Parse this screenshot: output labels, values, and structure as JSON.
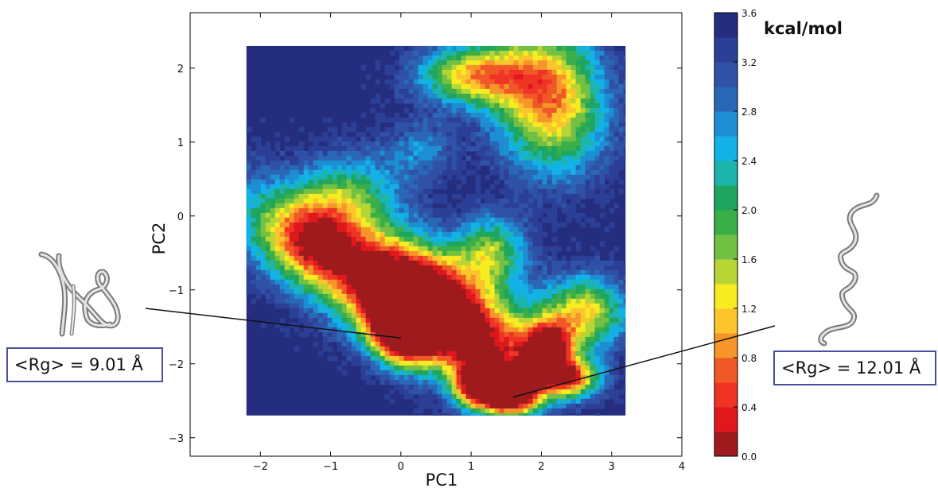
{
  "chart_data": {
    "type": "heatmap",
    "title": "",
    "xlabel": "PC1",
    "ylabel": "PC2",
    "xlim": [
      -3,
      4
    ],
    "ylim": [
      -3.25,
      2.75
    ],
    "x_ticks": [
      -2,
      -1,
      0,
      1,
      2,
      3,
      4
    ],
    "y_ticks": [
      -3,
      -2,
      -1,
      0,
      1,
      2
    ],
    "x_tick_labels": [
      "−2",
      "−1",
      "0",
      "1",
      "2",
      "3",
      "4"
    ],
    "y_tick_labels": [
      "−3",
      "−2",
      "−1",
      "0",
      "1",
      "2"
    ],
    "data_extent": {
      "x": [
        -2.2,
        3.2
      ],
      "y": [
        -2.7,
        2.3
      ]
    },
    "background_value": 3.6,
    "colorbar": {
      "unit_label": "kcal/mol",
      "range": [
        0.0,
        3.6
      ],
      "ticks": [
        0.0,
        0.4,
        0.8,
        1.2,
        1.6,
        2.0,
        2.4,
        2.8,
        3.2,
        3.6
      ],
      "tick_labels": [
        "0.0",
        "0.4",
        "0.8",
        "1.2",
        "1.6",
        "2.0",
        "2.4",
        "2.8",
        "3.2",
        "3.6"
      ],
      "levels": [
        {
          "min": 0.0,
          "max": 0.2,
          "color": "#9e1a1c"
        },
        {
          "min": 0.2,
          "max": 0.4,
          "color": "#e0181e"
        },
        {
          "min": 0.4,
          "max": 0.6,
          "color": "#ef3426"
        },
        {
          "min": 0.6,
          "max": 0.8,
          "color": "#f05828"
        },
        {
          "min": 0.8,
          "max": 1.0,
          "color": "#f5952a"
        },
        {
          "min": 1.0,
          "max": 1.2,
          "color": "#fdc52c"
        },
        {
          "min": 1.2,
          "max": 1.4,
          "color": "#f6ec21"
        },
        {
          "min": 1.4,
          "max": 1.6,
          "color": "#b7d535"
        },
        {
          "min": 1.6,
          "max": 1.8,
          "color": "#72c044"
        },
        {
          "min": 1.8,
          "max": 2.0,
          "color": "#3aae49"
        },
        {
          "min": 2.0,
          "max": 2.2,
          "color": "#1ea560"
        },
        {
          "min": 2.2,
          "max": 2.4,
          "color": "#1cb4ad"
        },
        {
          "min": 2.4,
          "max": 2.6,
          "color": "#13b2e6"
        },
        {
          "min": 2.6,
          "max": 2.8,
          "color": "#1d8ed3"
        },
        {
          "min": 2.8,
          "max": 3.0,
          "color": "#2a68b7"
        },
        {
          "min": 3.0,
          "max": 3.2,
          "color": "#2f51a6"
        },
        {
          "min": 3.2,
          "max": 3.4,
          "color": "#2c3f96"
        },
        {
          "min": 3.4,
          "max": 3.6,
          "color": "#252d7e"
        }
      ]
    },
    "basins": [
      {
        "x": 2.1,
        "y": 1.6,
        "depth": 0.85,
        "sx": 0.55,
        "sy": 0.7,
        "rot": 0.25
      },
      {
        "x": 1.0,
        "y": 1.9,
        "depth": 0.7,
        "sx": 0.55,
        "sy": 0.28,
        "rot": 0.0
      },
      {
        "x": -0.7,
        "y": -0.7,
        "depth": 0.9,
        "sx": 1.2,
        "sy": 0.45,
        "rot": -0.52
      },
      {
        "x": 0.3,
        "y": -1.0,
        "depth": 0.85,
        "sx": 0.6,
        "sy": 0.45,
        "rot": -0.4
      },
      {
        "x": 0.0,
        "y": -1.6,
        "depth": 1.0,
        "sx": 0.35,
        "sy": 0.28,
        "rot": -0.5
      },
      {
        "x": 1.2,
        "y": -1.7,
        "depth": 0.8,
        "sx": 0.7,
        "sy": 0.4,
        "rot": -0.35
      },
      {
        "x": 1.6,
        "y": -2.4,
        "depth": 1.2,
        "sx": 0.28,
        "sy": 0.22,
        "rot": 0.0
      },
      {
        "x": 1.1,
        "y": -2.3,
        "depth": 1.05,
        "sx": 0.25,
        "sy": 0.22,
        "rot": 0.0
      },
      {
        "x": 2.4,
        "y": -2.2,
        "depth": 0.85,
        "sx": 0.3,
        "sy": 0.18,
        "rot": 0.0
      },
      {
        "x": 2.1,
        "y": -1.8,
        "depth": 0.9,
        "sx": 0.25,
        "sy": 0.25,
        "rot": 0.0
      },
      {
        "x": 2.6,
        "y": -1.3,
        "depth": 0.7,
        "sx": 0.45,
        "sy": 0.35,
        "rot": 0.0
      },
      {
        "x": 1.3,
        "y": -0.5,
        "depth": 0.55,
        "sx": 0.35,
        "sy": 0.35,
        "rot": 0.0
      },
      {
        "x": -0.7,
        "y": 0.3,
        "depth": 0.45,
        "sx": 0.5,
        "sy": 0.4,
        "rot": 0.0
      },
      {
        "x": 0.3,
        "y": 0.9,
        "depth": 0.25,
        "sx": 0.35,
        "sy": 0.3,
        "rot": 0.0
      },
      {
        "x": -1.3,
        "y": -0.3,
        "depth": 0.35,
        "sx": 0.4,
        "sy": 0.35,
        "rot": 0.0
      }
    ],
    "annotations": [
      {
        "text": "<Rg> = 9.01 Å",
        "points_to": {
          "x": 0.0,
          "y": -1.65
        }
      },
      {
        "text": "<Rg> = 12.01 Å",
        "points_to": {
          "x": 1.6,
          "y": -2.45
        }
      }
    ]
  }
}
